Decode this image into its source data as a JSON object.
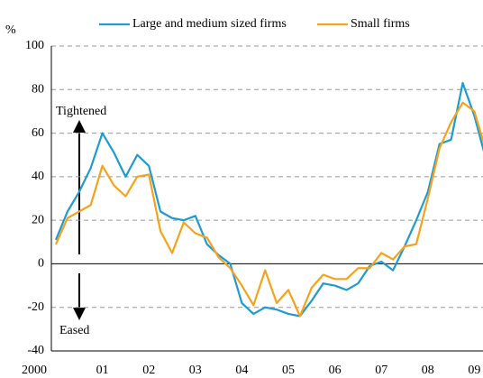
{
  "chart_data": {
    "type": "line",
    "y_unit": "%",
    "categories": [
      "2000",
      null,
      null,
      null,
      "01",
      null,
      null,
      null,
      "02",
      null,
      null,
      null,
      "03",
      null,
      null,
      null,
      "04",
      null,
      null,
      null,
      "05",
      null,
      null,
      null,
      "06",
      null,
      null,
      null,
      "07",
      null,
      null,
      null,
      "08",
      null,
      null,
      null,
      "09",
      null
    ],
    "series": [
      {
        "name": "Large and medium sized firms",
        "color": "#1f9bcf",
        "values": [
          11,
          24,
          33,
          44,
          60,
          51,
          40,
          50,
          45,
          24,
          21,
          20,
          22,
          9,
          4,
          0,
          -18,
          -23,
          -20,
          -21,
          -23,
          -24,
          -17,
          -9,
          -10,
          -12,
          -9,
          -1,
          1,
          -3,
          8,
          20,
          33,
          55,
          57,
          83,
          68,
          48
        ]
      },
      {
        "name": "Small firms",
        "color": "#f7a21b",
        "values": [
          9,
          21,
          24,
          27,
          45,
          36,
          31,
          40,
          41,
          15,
          5,
          19,
          14,
          12,
          3,
          -2,
          -10,
          -19,
          -3,
          -18,
          -12,
          -24,
          -11,
          -5,
          -7,
          -7,
          -2,
          -2,
          5,
          2,
          8,
          9,
          30,
          53,
          65,
          74,
          70,
          52
        ]
      }
    ],
    "annotations": [
      "Tightened",
      "Eased"
    ],
    "ylim": [
      -40,
      100
    ],
    "yticks": [
      -40,
      -20,
      0,
      20,
      40,
      60,
      80,
      100
    ],
    "grid": true
  }
}
